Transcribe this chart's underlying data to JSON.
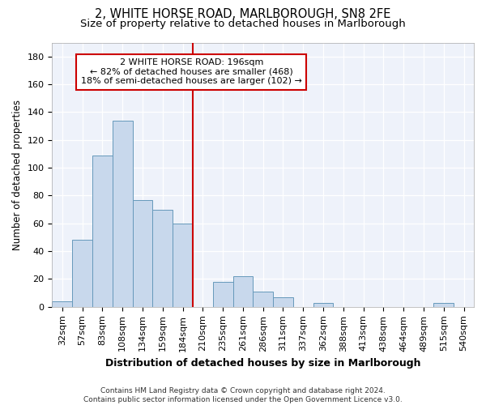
{
  "title1": "2, WHITE HORSE ROAD, MARLBOROUGH, SN8 2FE",
  "title2": "Size of property relative to detached houses in Marlborough",
  "xlabel": "Distribution of detached houses by size in Marlborough",
  "ylabel": "Number of detached properties",
  "bins": [
    "32sqm",
    "57sqm",
    "83sqm",
    "108sqm",
    "134sqm",
    "159sqm",
    "184sqm",
    "210sqm",
    "235sqm",
    "261sqm",
    "286sqm",
    "311sqm",
    "337sqm",
    "362sqm",
    "388sqm",
    "413sqm",
    "438sqm",
    "464sqm",
    "489sqm",
    "515sqm",
    "540sqm"
  ],
  "values": [
    4,
    48,
    109,
    134,
    77,
    70,
    60,
    0,
    18,
    22,
    11,
    7,
    0,
    3,
    0,
    0,
    0,
    0,
    0,
    3,
    0
  ],
  "bar_color": "#c8d8ec",
  "bar_edge_color": "#6699bb",
  "vline_color": "#cc0000",
  "vline_index": 7,
  "annotation_text_line1": "2 WHITE HORSE ROAD: 196sqm",
  "annotation_text_line2": "← 82% of detached houses are smaller (468)",
  "annotation_text_line3": "18% of semi-detached houses are larger (102) →",
  "annotation_box_color": "#ffffff",
  "annotation_box_edge": "#cc0000",
  "ylim": [
    0,
    190
  ],
  "yticks": [
    0,
    20,
    40,
    60,
    80,
    100,
    120,
    140,
    160,
    180
  ],
  "footer": "Contains HM Land Registry data © Crown copyright and database right 2024.\nContains public sector information licensed under the Open Government Licence v3.0.",
  "bg_color": "#eef2fa",
  "grid_color": "#ffffff",
  "title1_fontsize": 10.5,
  "title2_fontsize": 9.5,
  "xlabel_fontsize": 9,
  "ylabel_fontsize": 8.5,
  "tick_fontsize": 8,
  "annot_fontsize": 8,
  "footer_fontsize": 6.5
}
